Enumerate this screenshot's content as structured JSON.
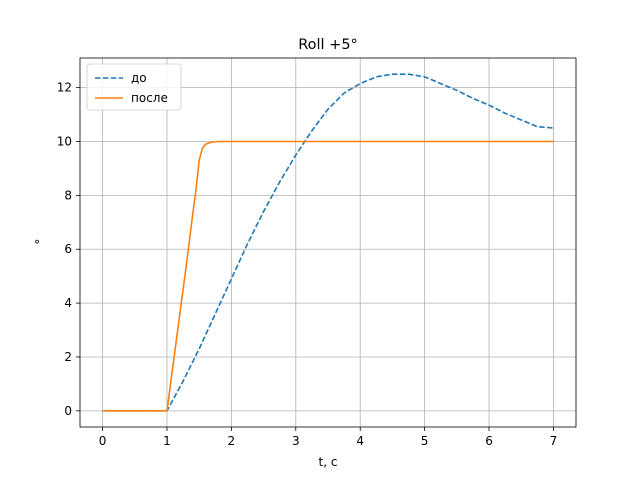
{
  "chart_data": {
    "type": "line",
    "title": "Roll +5°",
    "xlabel": "t, c",
    "ylabel": "°",
    "xlim": [
      -0.35,
      7.35
    ],
    "ylim": [
      -0.6,
      13.1
    ],
    "xticks": [
      0,
      1,
      2,
      3,
      4,
      5,
      6,
      7
    ],
    "yticks": [
      0,
      2,
      4,
      6,
      8,
      10,
      12
    ],
    "grid": true,
    "legend_position": "top-left",
    "series": [
      {
        "name": "до",
        "color": "#1f77b4",
        "style": "dashed",
        "x": [
          0,
          0.5,
          1.0,
          1.25,
          1.5,
          1.75,
          2.0,
          2.25,
          2.5,
          2.75,
          3.0,
          3.25,
          3.5,
          3.75,
          4.0,
          4.25,
          4.5,
          4.75,
          5.0,
          5.25,
          5.5,
          5.75,
          6.0,
          6.25,
          6.5,
          6.75,
          7.0
        ],
        "y": [
          0,
          0,
          0,
          1.1,
          2.3,
          3.6,
          4.9,
          6.2,
          7.4,
          8.5,
          9.5,
          10.4,
          11.2,
          11.8,
          12.15,
          12.4,
          12.5,
          12.5,
          12.4,
          12.15,
          11.9,
          11.6,
          11.35,
          11.05,
          10.8,
          10.55,
          10.5
        ]
      },
      {
        "name": "после",
        "color": "#ff7f0e",
        "style": "solid",
        "x": [
          0,
          0.5,
          1.0,
          1.1,
          1.2,
          1.3,
          1.4,
          1.45,
          1.5,
          1.55,
          1.6,
          1.7,
          1.8,
          1.9,
          2.0,
          3.0,
          4.0,
          5.0,
          6.0,
          7.0
        ],
        "y": [
          0,
          0,
          0,
          1.8,
          3.6,
          5.4,
          7.3,
          8.2,
          9.3,
          9.75,
          9.9,
          9.98,
          10,
          10,
          10,
          10,
          10,
          10,
          10,
          10
        ]
      }
    ]
  }
}
